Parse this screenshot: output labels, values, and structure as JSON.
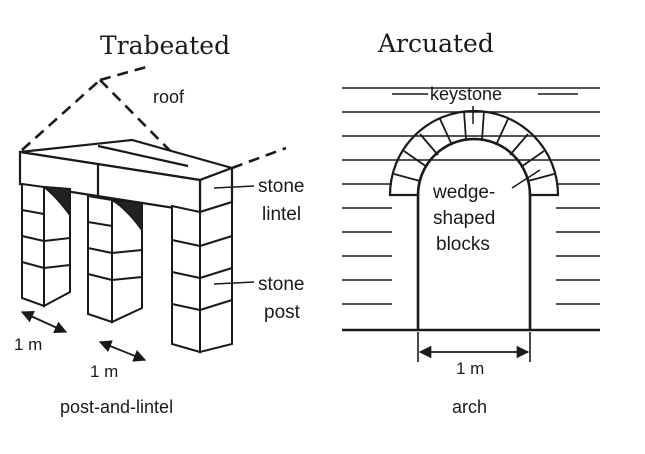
{
  "titles": {
    "left": "Trabeated",
    "right": "Arcuated"
  },
  "labels": {
    "roof": "roof",
    "stone_lintel_1": "stone",
    "stone_lintel_2": "lintel",
    "stone_post_1": "stone",
    "stone_post_2": "post",
    "keystone": "keystone",
    "wedge_1": "wedge-",
    "wedge_2": "shaped",
    "wedge_3": "blocks",
    "dim_left_1": "1 m",
    "dim_left_2": "1 m",
    "dim_right": "1 m"
  },
  "captions": {
    "left": "post-and-lintel",
    "right": "arch"
  }
}
